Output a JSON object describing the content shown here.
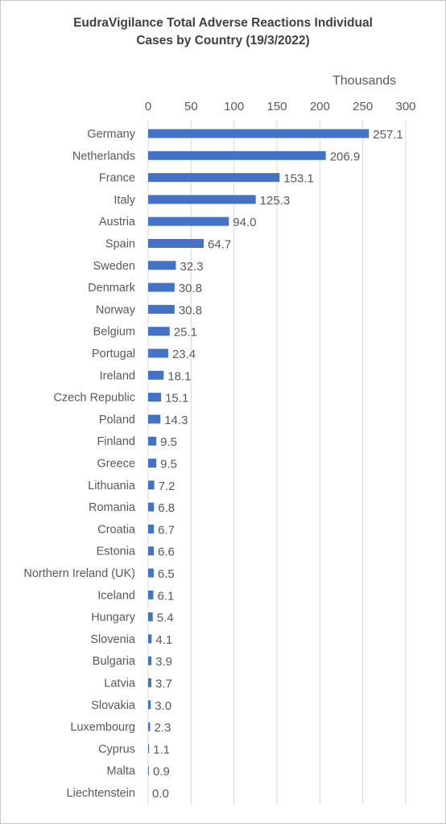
{
  "chart_data": {
    "type": "bar",
    "orientation": "horizontal",
    "title_lines": [
      "EudraVigilance Total Adverse Reactions Individual",
      "Cases by Country (19/3/2022)"
    ],
    "units_label": "Thousands",
    "x_ticks": [
      "0",
      "50",
      "100",
      "150",
      "200",
      "250",
      "300"
    ],
    "xlim": [
      0,
      300
    ],
    "grid": true,
    "bar_color": "#4472c4",
    "categories": [
      "Germany",
      "Netherlands",
      "France",
      "Italy",
      "Austria",
      "Spain",
      "Sweden",
      "Denmark",
      "Norway",
      "Belgium",
      "Portugal",
      "Ireland",
      "Czech Republic",
      "Poland",
      "Finland",
      "Greece",
      "Lithuania",
      "Romania",
      "Croatia",
      "Estonia",
      "Northern Ireland (UK)",
      "Iceland",
      "Hungary",
      "Slovenia",
      "Bulgaria",
      "Latvia",
      "Slovakia",
      "Luxembourg",
      "Cyprus",
      "Malta",
      "Liechtenstein"
    ],
    "values": [
      257.1,
      206.9,
      153.1,
      125.3,
      94.0,
      64.7,
      32.3,
      30.8,
      30.8,
      25.1,
      23.4,
      18.1,
      15.1,
      14.3,
      9.5,
      9.5,
      7.2,
      6.8,
      6.7,
      6.6,
      6.5,
      6.1,
      5.4,
      4.1,
      3.9,
      3.7,
      3.0,
      2.3,
      1.1,
      0.9,
      0.0
    ],
    "value_labels": [
      "257.1",
      "206.9",
      "153.1",
      "125.3",
      "94.0",
      "64.7",
      "32.3",
      "30.8",
      "30.8",
      "25.1",
      "23.4",
      "18.1",
      "15.1",
      "14.3",
      "9.5",
      "9.5",
      "7.2",
      "6.8",
      "6.7",
      "6.6",
      "6.5",
      "6.1",
      "5.4",
      "4.1",
      "3.9",
      "3.7",
      "3.0",
      "2.3",
      "1.1",
      "0.9",
      "0.0"
    ]
  }
}
